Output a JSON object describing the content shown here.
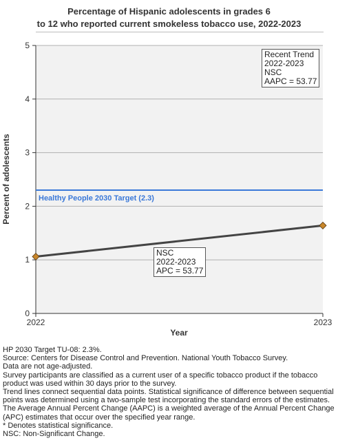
{
  "chart_data": {
    "type": "line",
    "title": "Percentage of Hispanic adolescents in grades 6 to 12 who reported current smokeless tobacco use, 2022-2023",
    "title_lines": [
      "Percentage of Hispanic adolescents in grades 6",
      "to 12 who reported current smokeless tobacco use, 2022-2023"
    ],
    "xlabel": "Year",
    "ylabel": "Percent of adolescents",
    "x": [
      2022,
      2023
    ],
    "x_tick_labels": [
      "2022",
      "2023"
    ],
    "series": [
      {
        "values": [
          1.06,
          1.64
        ],
        "color": "#444444",
        "marker_color": "#c8862a"
      }
    ],
    "ylim": [
      0,
      5
    ],
    "y_ticks": [
      0,
      1,
      2,
      3,
      4,
      5
    ],
    "y_tick_labels": [
      "0",
      "1",
      "2",
      "3",
      "4",
      "5"
    ],
    "grid": true,
    "target": {
      "value": 2.3,
      "label": "Healthy People 2030 Target (2.3)",
      "color": "#3a78d8"
    },
    "annotations": {
      "recent_trend": [
        "Recent Trend",
        "2022-2023",
        "NSC",
        "AAPC = 53.77"
      ],
      "segment": [
        "NSC",
        "2022-2023",
        "APC = 53.77"
      ]
    }
  },
  "footnotes": [
    "HP 2030 Target TU-08: 2.3%.",
    "Source: Centers for Disease Control and Prevention. National Youth Tobacco Survey.",
    "Data are not age-adjusted.",
    "Survey participants are classified as a current user of a specific tobacco product if the tobacco product was used within 30 days prior to the survey.",
    "Trend lines connect sequential data points. Statistical significance of difference between sequential points was determined using a two-sample test incorporating the standard errors of the estimates.",
    "The Average Annual Percent Change (AAPC) is a weighted average of the Annual Percent Change (APC) estimates that occur over the specified year range.",
    "* Denotes statistical significance.",
    "NSC: Non-Significant Change."
  ]
}
